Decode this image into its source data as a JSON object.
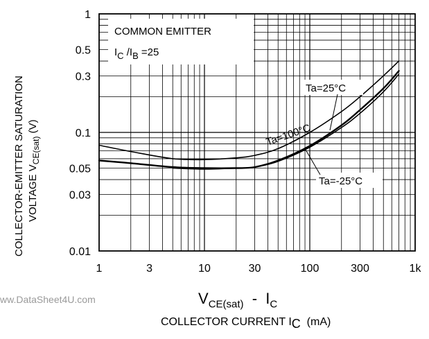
{
  "chart_data": {
    "type": "line",
    "x_scale": "log",
    "y_scale": "log",
    "xlim": [
      1,
      1000
    ],
    "ylim": [
      0.01,
      1
    ],
    "x_ticks": [
      {
        "value": 1,
        "label": "1"
      },
      {
        "value": 3,
        "label": "3"
      },
      {
        "value": 10,
        "label": "10"
      },
      {
        "value": 30,
        "label": "30"
      },
      {
        "value": 100,
        "label": "100"
      },
      {
        "value": 300,
        "label": "300"
      },
      {
        "value": 1000,
        "label": "1k"
      }
    ],
    "y_ticks": [
      {
        "value": 1,
        "label": "1"
      },
      {
        "value": 0.5,
        "label": "0.5"
      },
      {
        "value": 0.3,
        "label": "0.3"
      },
      {
        "value": 0.1,
        "label": "0.1"
      },
      {
        "value": 0.05,
        "label": "0.05"
      },
      {
        "value": 0.03,
        "label": "0.03"
      },
      {
        "value": 0.01,
        "label": "0.01"
      }
    ],
    "grid": true,
    "annotation": {
      "line1": "COMMON EMITTER",
      "ratio_i1": "I",
      "ratio_sub1": "C",
      "ratio_slash": " /I",
      "ratio_sub2": "B",
      "ratio_value": " =25"
    },
    "ylabel_line1": "COLLECTOR-EMITTER SATURATION",
    "ylabel_line2_prefix": "VOLTAGE V",
    "ylabel_line2_sub": "CE(sat)",
    "ylabel_line2_unit": "  (V)",
    "title_main": "V",
    "title_sub": "CE(sat)",
    "title_rest": "  -  I",
    "title_sub2": "C",
    "xlabel_prefix": "COLLECTOR CURRENT I",
    "xlabel_sub": "C",
    "xlabel_unit": "  (mA)",
    "series": [
      {
        "name": "Ta=100°C",
        "x": [
          1,
          2,
          5,
          10,
          20,
          30,
          50,
          100,
          200,
          300,
          500,
          700
        ],
        "y": [
          0.078,
          0.069,
          0.06,
          0.059,
          0.061,
          0.064,
          0.073,
          0.1,
          0.15,
          0.2,
          0.3,
          0.4
        ]
      },
      {
        "name": "Ta=25°C",
        "x": [
          1,
          2,
          5,
          10,
          20,
          30,
          50,
          100,
          200,
          300,
          500,
          700
        ],
        "y": [
          0.058,
          0.055,
          0.051,
          0.05,
          0.05,
          0.051,
          0.058,
          0.077,
          0.115,
          0.155,
          0.235,
          0.33
        ]
      },
      {
        "name": "Ta=-25°C",
        "x": [
          5,
          10,
          20,
          30,
          50,
          100,
          200,
          300,
          500,
          700
        ],
        "y": [
          0.05,
          0.049,
          0.05,
          0.051,
          0.057,
          0.075,
          0.11,
          0.145,
          0.22,
          0.31
        ]
      }
    ],
    "series_labels": [
      "Ta=25°C",
      "Ta=100°C",
      "Ta=-25°C"
    ]
  },
  "watermark": "ww.DataSheet4U.com"
}
